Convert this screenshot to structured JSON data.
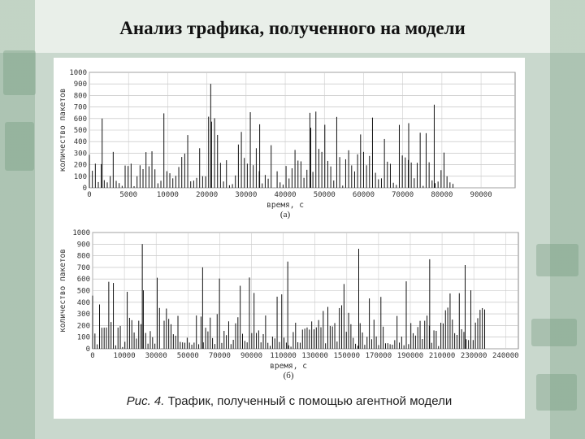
{
  "slide": {
    "title": "Анализ трафика, полученного на модели"
  },
  "figure": {
    "caption_prefix": "Рис. 4.",
    "caption_text": " Трафик, полученный с помощью агентной модели"
  },
  "chart_data": [
    {
      "type": "bar",
      "panel_label": "(а)",
      "xlabel": "время, с",
      "ylabel": "количество пакетов",
      "xlim": [
        0,
        100000
      ],
      "ylim": [
        0,
        1000
      ],
      "x_tick_labels": [
        "0",
        "5000",
        "10000",
        "20000",
        "30000",
        "40000",
        "50000",
        "60000",
        "70000",
        "80000",
        "90000"
      ],
      "y_tick_labels": [
        "0",
        "100",
        "200",
        "300",
        "400",
        "500",
        "600",
        "700",
        "800",
        "900",
        "1000"
      ],
      "grid": true,
      "data_extent": [
        0,
        86000
      ],
      "typical_range": [
        100,
        500
      ],
      "peaks": [
        {
          "x": 3000,
          "y": 600
        },
        {
          "x": 28500,
          "y": 900
        },
        {
          "x": 40000,
          "y": 550
        },
        {
          "x": 52000,
          "y": 520
        },
        {
          "x": 75000,
          "y": 560
        },
        {
          "x": 81000,
          "y": 720
        }
      ],
      "bars": []
    },
    {
      "type": "bar",
      "panel_label": "(б)",
      "xlabel": "время, с",
      "ylabel": "количество пакетов",
      "xlim": [
        0,
        240000
      ],
      "ylim": [
        0,
        1000
      ],
      "x_tick_labels": [
        "0",
        "10000",
        "30000",
        "50000",
        "70000",
        "90000",
        "110000",
        "130000",
        "150000",
        "170000",
        "190000",
        "210000",
        "230000",
        "240000"
      ],
      "y_tick_labels": [
        "0",
        "100",
        "200",
        "300",
        "400",
        "500",
        "600",
        "700",
        "800",
        "900",
        "1000"
      ],
      "grid": true,
      "data_extent": [
        0,
        222000
      ],
      "typical_range": [
        100,
        500
      ],
      "peaks": [
        {
          "x": 28000,
          "y": 900
        },
        {
          "x": 62000,
          "y": 700
        },
        {
          "x": 110000,
          "y": 750
        },
        {
          "x": 150000,
          "y": 860
        },
        {
          "x": 190000,
          "y": 770
        },
        {
          "x": 210000,
          "y": 720
        }
      ],
      "bars": []
    }
  ]
}
